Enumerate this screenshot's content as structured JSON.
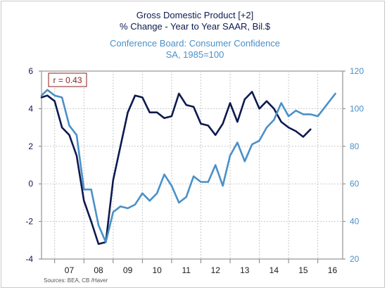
{
  "chart_data": {
    "type": "line",
    "title_left_line1": "Gross Domestic Product [+2]",
    "title_left_line2": "% Change - Year to Year   SAAR, Bil.$",
    "title_right_line1": "Conference Board: Consumer Confidence",
    "title_right_line2": "SA, 1985=100",
    "annotation": "r = 0.43",
    "source": "Sources:  BEA, CB /Haver",
    "left_axis": {
      "min": -4,
      "max": 6,
      "ticks": [
        "6",
        "4",
        "2",
        "0",
        "-2",
        "-4"
      ],
      "color": "#0d1a4f"
    },
    "right_axis": {
      "min": 20,
      "max": 120,
      "ticks": [
        "120",
        "100",
        "80",
        "60",
        "40",
        "20"
      ],
      "color": "#4a90c8"
    },
    "x_labels": [
      "07",
      "08",
      "09",
      "10",
      "11",
      "12",
      "13",
      "14",
      "15",
      "16"
    ],
    "x_range": [
      2006.55,
      2016.85
    ],
    "grid": true,
    "series": [
      {
        "name": "Gross Domestic Product [+2]",
        "axis": "left",
        "color": "#0d1a4f",
        "points": [
          [
            2006.55,
            4.6
          ],
          [
            2006.75,
            4.7
          ],
          [
            2007.0,
            4.4
          ],
          [
            2007.25,
            3.0
          ],
          [
            2007.5,
            2.6
          ],
          [
            2007.75,
            1.5
          ],
          [
            2008.0,
            -0.9
          ],
          [
            2008.25,
            -2.0
          ],
          [
            2008.5,
            -3.2
          ],
          [
            2008.75,
            -3.1
          ],
          [
            2009.0,
            0.2
          ],
          [
            2009.25,
            2.0
          ],
          [
            2009.5,
            3.8
          ],
          [
            2009.75,
            4.7
          ],
          [
            2010.0,
            4.6
          ],
          [
            2010.25,
            3.8
          ],
          [
            2010.5,
            3.8
          ],
          [
            2010.75,
            3.5
          ],
          [
            2011.0,
            3.6
          ],
          [
            2011.25,
            4.8
          ],
          [
            2011.5,
            4.2
          ],
          [
            2011.75,
            4.1
          ],
          [
            2012.0,
            3.2
          ],
          [
            2012.25,
            3.1
          ],
          [
            2012.5,
            2.6
          ],
          [
            2012.75,
            3.2
          ],
          [
            2013.0,
            4.3
          ],
          [
            2013.25,
            3.3
          ],
          [
            2013.5,
            4.5
          ],
          [
            2013.75,
            4.9
          ],
          [
            2014.0,
            4.0
          ],
          [
            2014.25,
            4.4
          ],
          [
            2014.5,
            4.0
          ],
          [
            2014.75,
            3.3
          ],
          [
            2015.0,
            3.0
          ],
          [
            2015.25,
            2.8
          ],
          [
            2015.5,
            2.5
          ],
          [
            2015.75,
            2.9
          ]
        ]
      },
      {
        "name": "Conference Board: Consumer Confidence",
        "axis": "right",
        "color": "#4a90c8",
        "points": [
          [
            2006.55,
            107
          ],
          [
            2006.75,
            110
          ],
          [
            2007.0,
            107
          ],
          [
            2007.25,
            106
          ],
          [
            2007.5,
            91
          ],
          [
            2007.75,
            86
          ],
          [
            2008.0,
            57
          ],
          [
            2008.25,
            57
          ],
          [
            2008.5,
            38
          ],
          [
            2008.75,
            29
          ],
          [
            2009.0,
            45
          ],
          [
            2009.25,
            48
          ],
          [
            2009.5,
            47
          ],
          [
            2009.75,
            49
          ],
          [
            2010.0,
            55
          ],
          [
            2010.25,
            51
          ],
          [
            2010.5,
            55
          ],
          [
            2010.75,
            65
          ],
          [
            2011.0,
            59
          ],
          [
            2011.25,
            50
          ],
          [
            2011.5,
            53
          ],
          [
            2011.75,
            64
          ],
          [
            2012.0,
            61
          ],
          [
            2012.25,
            61
          ],
          [
            2012.5,
            70
          ],
          [
            2012.75,
            59
          ],
          [
            2013.0,
            75
          ],
          [
            2013.25,
            82
          ],
          [
            2013.5,
            72
          ],
          [
            2013.75,
            81
          ],
          [
            2014.0,
            83
          ],
          [
            2014.25,
            90
          ],
          [
            2014.5,
            94
          ],
          [
            2014.75,
            103
          ],
          [
            2015.0,
            96
          ],
          [
            2015.25,
            99
          ],
          [
            2015.5,
            97
          ],
          [
            2015.75,
            97
          ],
          [
            2016.0,
            96
          ],
          [
            2016.25,
            101
          ],
          [
            2016.6,
            108
          ]
        ]
      }
    ]
  }
}
